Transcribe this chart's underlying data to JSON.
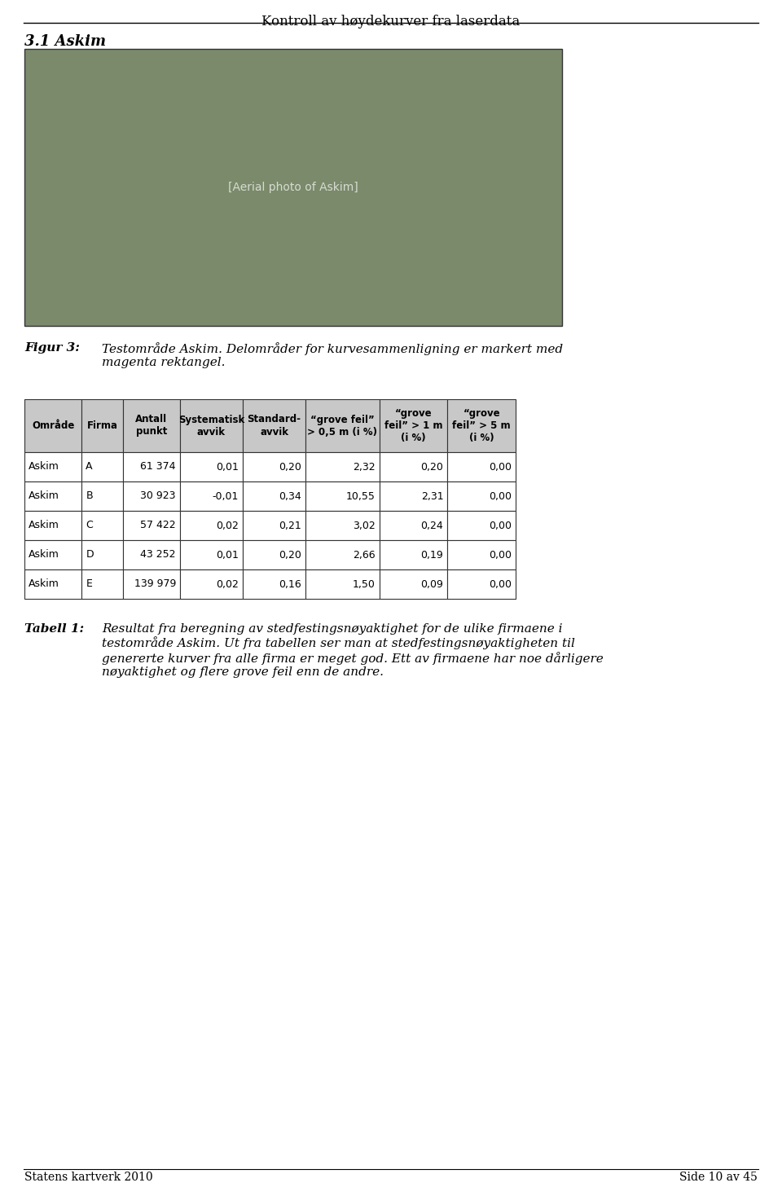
{
  "page_title": "Kontroll av høydekurver fra laserdata",
  "section_title": "3.1 Askim",
  "figur_label": "Figur 3:",
  "figur_caption": "Testområde Askim. Delområder for kurvesammenligning er markert med\nmagenta rektangel.",
  "tabell_label": "Tabell 1:",
  "tabell_caption": "Resultat fra beregning av stedfestingsnøyaktighet for de ulike firmaene i\ntestområde Askim. Ut fra tabellen ser man at stedfestingsnøyaktigheten til\ngenererte kurver fra alle firma er meget god. Ett av firmaene har noe dårligere\nnøyaktighet og flere grove feil enn de andre.",
  "footer_left": "Statens kartverk 2010",
  "footer_right": "Side 10 av 45",
  "table_headers": [
    "Område",
    "Firma",
    "Antall\npunkt",
    "Systematisk\navvik",
    "Standard-\navvik",
    "“grove feil”\n> 0,5 m (i %)",
    "“grove\nfeil” > 1 m\n(i %)",
    "“grove\nfeil” > 5 m\n(i %)"
  ],
  "table_data": [
    [
      "Askim",
      "A",
      "61 374",
      "0,01",
      "0,20",
      "2,32",
      "0,20",
      "0,00"
    ],
    [
      "Askim",
      "B",
      "30 923",
      "-0,01",
      "0,34",
      "10,55",
      "2,31",
      "0,00"
    ],
    [
      "Askim",
      "C",
      "57 422",
      "0,02",
      "0,21",
      "3,02",
      "0,24",
      "0,00"
    ],
    [
      "Askim",
      "D",
      "43 252",
      "0,01",
      "0,20",
      "2,66",
      "0,19",
      "0,00"
    ],
    [
      "Askim",
      "E",
      "139 979",
      "0,02",
      "0,16",
      "1,50",
      "0,09",
      "0,00"
    ]
  ],
  "col_alignments": [
    "left",
    "left",
    "right",
    "right",
    "right",
    "right",
    "right",
    "right"
  ],
  "header_bg": "#d0d0d0",
  "table_bg": "#ffffff",
  "table_border": "#000000",
  "background_color": "#ffffff"
}
